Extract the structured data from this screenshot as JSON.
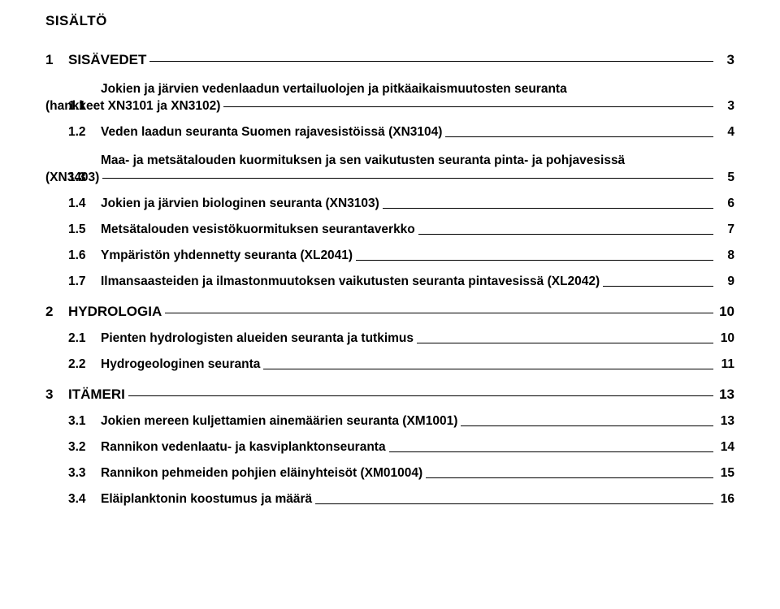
{
  "title": "SISÄLTÖ",
  "sections": [
    {
      "num": "1",
      "label": "SISÄVEDET",
      "page": "3",
      "level": 1
    },
    {
      "num": "1.1",
      "label": "Jokien ja järvien vedenlaadun vertailuolojen ja pitkäaikaismuutosten seuranta (hankkeet XN3101 ja XN3102)",
      "page": "3",
      "level": 2,
      "hang": true
    },
    {
      "num": "1.2",
      "label": "Veden laadun seuranta Suomen rajavesistöissä (XN3104)",
      "page": "4",
      "level": 2
    },
    {
      "num": "1.3",
      "label": "Maa- ja metsätalouden kuormituksen ja sen vaikutusten seuranta pinta- ja pohjavesissä (XN3403)",
      "page": "5",
      "level": 2,
      "hang": true
    },
    {
      "num": "1.4",
      "label": "Jokien ja järvien biologinen seuranta (XN3103)",
      "page": "6",
      "level": 2
    },
    {
      "num": "1.5",
      "label": "Metsätalouden vesistökuormituksen seurantaverkko",
      "page": "7",
      "level": 2
    },
    {
      "num": "1.6",
      "label": "Ympäristön yhdennetty seuranta (XL2041)",
      "page": "8",
      "level": 2
    },
    {
      "num": "1.7",
      "label": "Ilmansaasteiden ja ilmastonmuutoksen vaikutusten seuranta pintavesissä (XL2042)",
      "page": "9",
      "level": 2
    },
    {
      "num": "2",
      "label": "HYDROLOGIA",
      "page": "10",
      "level": 1
    },
    {
      "num": "2.1",
      "label": "Pienten hydrologisten alueiden seuranta ja tutkimus",
      "page": "10",
      "level": 2
    },
    {
      "num": "2.2",
      "label": "Hydrogeologinen seuranta",
      "page": "11",
      "level": 2
    },
    {
      "num": "3",
      "label": "ITÄMERI",
      "page": "13",
      "level": 1
    },
    {
      "num": "3.1",
      "label": "Jokien mereen kuljettamien ainemäärien seuranta (XM1001)",
      "page": "13",
      "level": 2
    },
    {
      "num": "3.2",
      "label": "Rannikon vedenlaatu- ja kasviplanktonseuranta",
      "page": "14",
      "level": 2
    },
    {
      "num": "3.3",
      "label": "Rannikon pehmeiden pohjien eläinyhteisöt (XM01004)",
      "page": "15",
      "level": 2
    },
    {
      "num": "3.4",
      "label": "Eläiplanktonin koostumus ja määrä",
      "page": "16",
      "level": 2
    }
  ]
}
